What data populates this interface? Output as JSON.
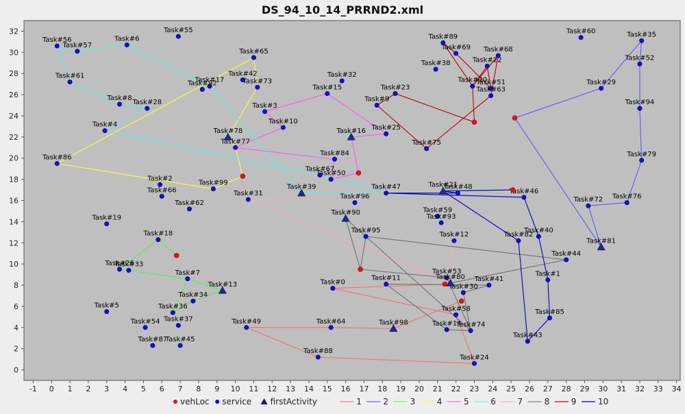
{
  "chart_data": {
    "type": "scatter",
    "title": "DS_94_10_14_PRRND2.xml",
    "xlabel": "",
    "ylabel": "",
    "xlim": [
      -1.5,
      34.2
    ],
    "ylim": [
      -1,
      33
    ],
    "x_ticks": [
      -1,
      0,
      1,
      2,
      3,
      4,
      5,
      6,
      7,
      8,
      9,
      10,
      11,
      12,
      13,
      14,
      15,
      16,
      17,
      18,
      19,
      20,
      21,
      22,
      23,
      24,
      25,
      26,
      27,
      28,
      29,
      30,
      31,
      32,
      33,
      34
    ],
    "y_ticks": [
      0,
      2,
      4,
      6,
      8,
      10,
      12,
      14,
      16,
      18,
      20,
      22,
      24,
      26,
      28,
      30,
      32
    ],
    "grid": false,
    "legend_position": "bottom",
    "legend": [
      {
        "label": "vehLoc",
        "kind": "dot",
        "color": "#ff0000"
      },
      {
        "label": "service",
        "kind": "dot",
        "color": "#0000ff"
      },
      {
        "label": "firstActivity",
        "kind": "triangle",
        "color": "#1a1a80"
      },
      {
        "label": "1",
        "kind": "line",
        "color": "#ff7a7a"
      },
      {
        "label": "2",
        "kind": "line",
        "color": "#6a6aff"
      },
      {
        "label": "3",
        "kind": "line",
        "color": "#66ff66"
      },
      {
        "label": "4",
        "kind": "line",
        "color": "#ffff44"
      },
      {
        "label": "5",
        "kind": "line",
        "color": "#ff66ff"
      },
      {
        "label": "6",
        "kind": "line",
        "color": "#66ffff"
      },
      {
        "label": "7",
        "kind": "line",
        "color": "#ffb6b6"
      },
      {
        "label": "8",
        "kind": "line",
        "color": "#808080"
      },
      {
        "label": "9",
        "kind": "line",
        "color": "#cc0000"
      },
      {
        "label": "10",
        "kind": "line",
        "color": "#0000aa"
      }
    ],
    "tasks": [
      {
        "label": "Task#0",
        "x": 15.3,
        "y": 7.7
      },
      {
        "label": "Task#1",
        "x": 27.0,
        "y": 8.5
      },
      {
        "label": "Task#2",
        "x": 5.9,
        "y": 17.5
      },
      {
        "label": "Task#3",
        "x": 11.6,
        "y": 24.4
      },
      {
        "label": "Task#4",
        "x": 2.9,
        "y": 22.6
      },
      {
        "label": "Task#5",
        "x": 3.0,
        "y": 5.5
      },
      {
        "label": "Task#6",
        "x": 4.1,
        "y": 30.7
      },
      {
        "label": "Task#7",
        "x": 7.4,
        "y": 8.6
      },
      {
        "label": "Task#8",
        "x": 3.7,
        "y": 25.1
      },
      {
        "label": "Task#9",
        "x": 17.7,
        "y": 25.0
      },
      {
        "label": "Task#10",
        "x": 12.6,
        "y": 22.9
      },
      {
        "label": "Task#11",
        "x": 18.2,
        "y": 8.1
      },
      {
        "label": "Task#12",
        "x": 21.9,
        "y": 12.2
      },
      {
        "label": "Task#13",
        "x": 9.3,
        "y": 7.5,
        "first": true
      },
      {
        "label": "Task#14",
        "x": 21.5,
        "y": 3.8
      },
      {
        "label": "Task#15",
        "x": 15.0,
        "y": 26.1
      },
      {
        "label": "Task#16",
        "x": 16.3,
        "y": 22.0,
        "first": true
      },
      {
        "label": "Task#17",
        "x": 8.6,
        "y": 26.8
      },
      {
        "label": "Task#18",
        "x": 5.8,
        "y": 12.3
      },
      {
        "label": "Task#19",
        "x": 3.0,
        "y": 13.8
      },
      {
        "label": "Task#20",
        "x": 22.9,
        "y": 26.8
      },
      {
        "label": "Task#21",
        "x": 21.3,
        "y": 16.9,
        "first": true
      },
      {
        "label": "Task#22",
        "x": 23.7,
        "y": 28.7
      },
      {
        "label": "Task#23",
        "x": 18.7,
        "y": 26.1
      },
      {
        "label": "Task#24",
        "x": 23.0,
        "y": 0.6
      },
      {
        "label": "Task#25",
        "x": 18.2,
        "y": 22.3
      },
      {
        "label": "Task#26",
        "x": 3.7,
        "y": 9.5
      },
      {
        "label": "Task#28",
        "x": 5.2,
        "y": 24.7
      },
      {
        "label": "Task#29",
        "x": 29.9,
        "y": 26.6
      },
      {
        "label": "Task#30",
        "x": 22.4,
        "y": 7.3
      },
      {
        "label": "Task#31",
        "x": 10.7,
        "y": 16.1
      },
      {
        "label": "Task#32",
        "x": 15.8,
        "y": 27.3
      },
      {
        "label": "Task#33",
        "x": 4.2,
        "y": 9.4
      },
      {
        "label": "Task#34",
        "x": 7.7,
        "y": 6.5
      },
      {
        "label": "Task#35",
        "x": 32.1,
        "y": 31.1
      },
      {
        "label": "Task#36",
        "x": 6.6,
        "y": 5.4
      },
      {
        "label": "Task#37",
        "x": 6.9,
        "y": 4.2
      },
      {
        "label": "Task#38",
        "x": 20.9,
        "y": 28.4
      },
      {
        "label": "Task#39",
        "x": 13.6,
        "y": 16.7,
        "first": true
      },
      {
        "label": "Task#40",
        "x": 26.5,
        "y": 12.6
      },
      {
        "label": "Task#41",
        "x": 23.8,
        "y": 8.0
      },
      {
        "label": "Task#42",
        "x": 10.4,
        "y": 27.4
      },
      {
        "label": "Task#43",
        "x": 25.9,
        "y": 2.7
      },
      {
        "label": "Task#44",
        "x": 28.0,
        "y": 10.4
      },
      {
        "label": "Task#45",
        "x": 7.0,
        "y": 2.3
      },
      {
        "label": "Task#46",
        "x": 25.7,
        "y": 16.3
      },
      {
        "label": "Task#47",
        "x": 18.2,
        "y": 16.7
      },
      {
        "label": "Task#48",
        "x": 22.1,
        "y": 16.7
      },
      {
        "label": "Task#49",
        "x": 10.6,
        "y": 4.0
      },
      {
        "label": "Task#50",
        "x": 15.2,
        "y": 18.0
      },
      {
        "label": "Task#51",
        "x": 23.9,
        "y": 26.6
      },
      {
        "label": "Task#52",
        "x": 32.0,
        "y": 28.9
      },
      {
        "label": "Task#53",
        "x": 21.5,
        "y": 8.7
      },
      {
        "label": "Task#54",
        "x": 5.1,
        "y": 4.0
      },
      {
        "label": "Task#55",
        "x": 6.9,
        "y": 31.5
      },
      {
        "label": "Task#56",
        "x": 0.3,
        "y": 30.6
      },
      {
        "label": "Task#57",
        "x": 1.4,
        "y": 30.1
      },
      {
        "label": "Task#58",
        "x": 22.0,
        "y": 5.2
      },
      {
        "label": "Task#59",
        "x": 21.0,
        "y": 14.5
      },
      {
        "label": "Task#60",
        "x": 28.8,
        "y": 31.4
      },
      {
        "label": "Task#61",
        "x": 1.0,
        "y": 27.2
      },
      {
        "label": "Task#62",
        "x": 7.5,
        "y": 15.2
      },
      {
        "label": "Task#63",
        "x": 23.9,
        "y": 25.9
      },
      {
        "label": "Task#64",
        "x": 15.2,
        "y": 4.0
      },
      {
        "label": "Task#65",
        "x": 11.0,
        "y": 29.5
      },
      {
        "label": "Task#66",
        "x": 6.0,
        "y": 16.4
      },
      {
        "label": "Task#67",
        "x": 14.6,
        "y": 18.4
      },
      {
        "label": "Task#68",
        "x": 24.3,
        "y": 29.7
      },
      {
        "label": "Task#69",
        "x": 22.0,
        "y": 29.9
      },
      {
        "label": "Task#72",
        "x": 29.2,
        "y": 15.5
      },
      {
        "label": "Task#73",
        "x": 11.2,
        "y": 26.7
      },
      {
        "label": "Task#74",
        "x": 22.8,
        "y": 3.7
      },
      {
        "label": "Task#75",
        "x": 20.4,
        "y": 20.9
      },
      {
        "label": "Task#76",
        "x": 31.3,
        "y": 15.8
      },
      {
        "label": "Task#77",
        "x": 10.0,
        "y": 21.0
      },
      {
        "label": "Task#78",
        "x": 9.6,
        "y": 22.0,
        "first": true
      },
      {
        "label": "Task#79",
        "x": 32.1,
        "y": 19.8
      },
      {
        "label": "Task#80",
        "x": 21.7,
        "y": 8.2,
        "first": true
      },
      {
        "label": "Task#81",
        "x": 29.9,
        "y": 11.6,
        "first": true
      },
      {
        "label": "Task#82",
        "x": 25.4,
        "y": 12.2
      },
      {
        "label": "Task#84",
        "x": 15.4,
        "y": 19.9
      },
      {
        "label": "Task#85",
        "x": 27.1,
        "y": 4.9
      },
      {
        "label": "Task#86",
        "x": 0.3,
        "y": 19.5
      },
      {
        "label": "Task#87",
        "x": 5.5,
        "y": 2.3
      },
      {
        "label": "Task#88",
        "x": 14.5,
        "y": 1.2
      },
      {
        "label": "Task#89",
        "x": 21.3,
        "y": 30.9
      },
      {
        "label": "Task#90",
        "x": 16.0,
        "y": 14.3,
        "first": true
      },
      {
        "label": "Task#92",
        "x": 8.2,
        "y": 26.5
      },
      {
        "label": "Task#93",
        "x": 21.2,
        "y": 13.9
      },
      {
        "label": "Task#94",
        "x": 32.0,
        "y": 24.7
      },
      {
        "label": "Task#95",
        "x": 17.1,
        "y": 12.6
      },
      {
        "label": "Task#96",
        "x": 16.5,
        "y": 15.8
      },
      {
        "label": "Task#98",
        "x": 18.6,
        "y": 3.9,
        "first": true
      },
      {
        "label": "Task#99",
        "x": 8.8,
        "y": 17.1
      }
    ],
    "vehicle_locations": [
      {
        "x": 6.8,
        "y": 10.8
      },
      {
        "x": 10.4,
        "y": 18.3
      },
      {
        "x": 16.7,
        "y": 18.6
      },
      {
        "x": 16.8,
        "y": 9.5
      },
      {
        "x": 21.4,
        "y": 8.1
      },
      {
        "x": 22.3,
        "y": 6.5
      },
      {
        "x": 23.0,
        "y": 23.4
      },
      {
        "x": 25.1,
        "y": 17.0
      },
      {
        "x": 25.2,
        "y": 23.8
      }
    ],
    "routes": [
      {
        "name": "1",
        "color": "#ff6a6a",
        "points": [
          [
            22.3,
            6.5
          ],
          [
            18.6,
            3.9
          ],
          [
            15.2,
            4.0
          ],
          [
            10.6,
            4.0
          ],
          [
            14.5,
            1.2
          ],
          [
            23.0,
            0.6
          ],
          [
            22.0,
            5.2
          ],
          [
            15.3,
            7.7
          ],
          [
            21.4,
            8.1
          ]
        ]
      },
      {
        "name": "2",
        "color": "#5a5aff",
        "points": [
          [
            25.2,
            23.8
          ],
          [
            29.9,
            11.6
          ],
          [
            29.2,
            15.5
          ],
          [
            31.3,
            15.8
          ],
          [
            32.1,
            19.8
          ],
          [
            32.0,
            24.7
          ],
          [
            32.0,
            28.9
          ],
          [
            32.1,
            31.1
          ],
          [
            29.9,
            26.6
          ],
          [
            25.2,
            23.8
          ]
        ]
      },
      {
        "name": "3",
        "color": "#55ee55",
        "points": [
          [
            6.8,
            10.8
          ],
          [
            5.8,
            12.3
          ],
          [
            3.7,
            9.5
          ],
          [
            4.2,
            9.4
          ],
          [
            7.4,
            8.6
          ],
          [
            9.3,
            7.5
          ],
          [
            7.7,
            6.5
          ],
          [
            6.6,
            5.4
          ],
          [
            7.4,
            8.6
          ]
        ]
      },
      {
        "name": "4",
        "color": "#ffff33",
        "points": [
          [
            9.6,
            22.0
          ],
          [
            11.2,
            26.7
          ],
          [
            11.0,
            29.5
          ],
          [
            0.3,
            19.5
          ],
          [
            8.8,
            17.1
          ],
          [
            10.4,
            18.3
          ],
          [
            10.0,
            21.0
          ],
          [
            9.6,
            22.0
          ]
        ]
      },
      {
        "name": "5",
        "color": "#ff55ff",
        "points": [
          [
            16.3,
            22.0
          ],
          [
            18.2,
            22.3
          ],
          [
            15.0,
            26.1
          ],
          [
            11.6,
            24.4
          ],
          [
            12.6,
            22.9
          ],
          [
            10.0,
            21.0
          ],
          [
            15.4,
            19.9
          ],
          [
            15.2,
            18.0
          ],
          [
            16.7,
            18.6
          ],
          [
            16.3,
            22.0
          ]
        ]
      },
      {
        "name": "6",
        "color": "#55eeee",
        "points": [
          [
            13.6,
            16.7
          ],
          [
            8.6,
            26.8
          ],
          [
            4.1,
            30.7
          ],
          [
            1.4,
            30.1
          ],
          [
            0.3,
            30.6
          ],
          [
            1.0,
            27.2
          ],
          [
            3.7,
            25.1
          ],
          [
            5.2,
            24.7
          ],
          [
            2.9,
            22.6
          ],
          [
            14.6,
            18.4
          ],
          [
            18.2,
            16.7
          ],
          [
            13.6,
            16.7
          ]
        ]
      },
      {
        "name": "7",
        "color": "#ffaaaa",
        "points": [
          [
            21.9,
            12.2
          ],
          [
            21.5,
            8.7
          ],
          [
            21.7,
            8.2
          ],
          [
            10.7,
            16.1
          ],
          [
            18.2,
            16.7
          ]
        ]
      },
      {
        "name": "8",
        "color": "#707070",
        "points": [
          [
            16.8,
            9.5
          ],
          [
            17.1,
            12.6
          ],
          [
            16.0,
            14.3
          ],
          [
            16.8,
            9.5
          ],
          [
            21.5,
            8.7
          ],
          [
            22.8,
            3.7
          ],
          [
            22.4,
            7.3
          ],
          [
            23.8,
            8.0
          ],
          [
            18.2,
            8.1
          ],
          [
            21.5,
            3.8
          ],
          [
            22.8,
            3.7
          ],
          [
            17.1,
            12.6
          ],
          [
            28.0,
            10.4
          ],
          [
            21.7,
            8.2
          ]
        ]
      },
      {
        "name": "9",
        "color": "#bb0000",
        "points": [
          [
            23.0,
            23.4
          ],
          [
            18.7,
            26.1
          ],
          [
            17.7,
            25.0
          ],
          [
            20.4,
            20.9
          ],
          [
            23.9,
            25.9
          ],
          [
            24.3,
            29.7
          ],
          [
            22.9,
            26.8
          ],
          [
            21.3,
            30.9
          ],
          [
            22.0,
            29.9
          ],
          [
            23.9,
            26.6
          ],
          [
            23.7,
            28.7
          ],
          [
            22.9,
            26.8
          ],
          [
            23.0,
            23.4
          ]
        ]
      },
      {
        "name": "10",
        "color": "#0000bb",
        "points": [
          [
            25.1,
            17.0
          ],
          [
            21.3,
            16.9
          ],
          [
            22.1,
            16.7
          ],
          [
            18.2,
            16.7
          ],
          [
            25.7,
            16.3
          ],
          [
            26.5,
            12.6
          ],
          [
            27.0,
            8.5
          ],
          [
            27.1,
            4.9
          ],
          [
            25.9,
            2.7
          ],
          [
            25.4,
            12.2
          ],
          [
            21.3,
            16.9
          ],
          [
            25.1,
            17.0
          ]
        ]
      }
    ]
  }
}
